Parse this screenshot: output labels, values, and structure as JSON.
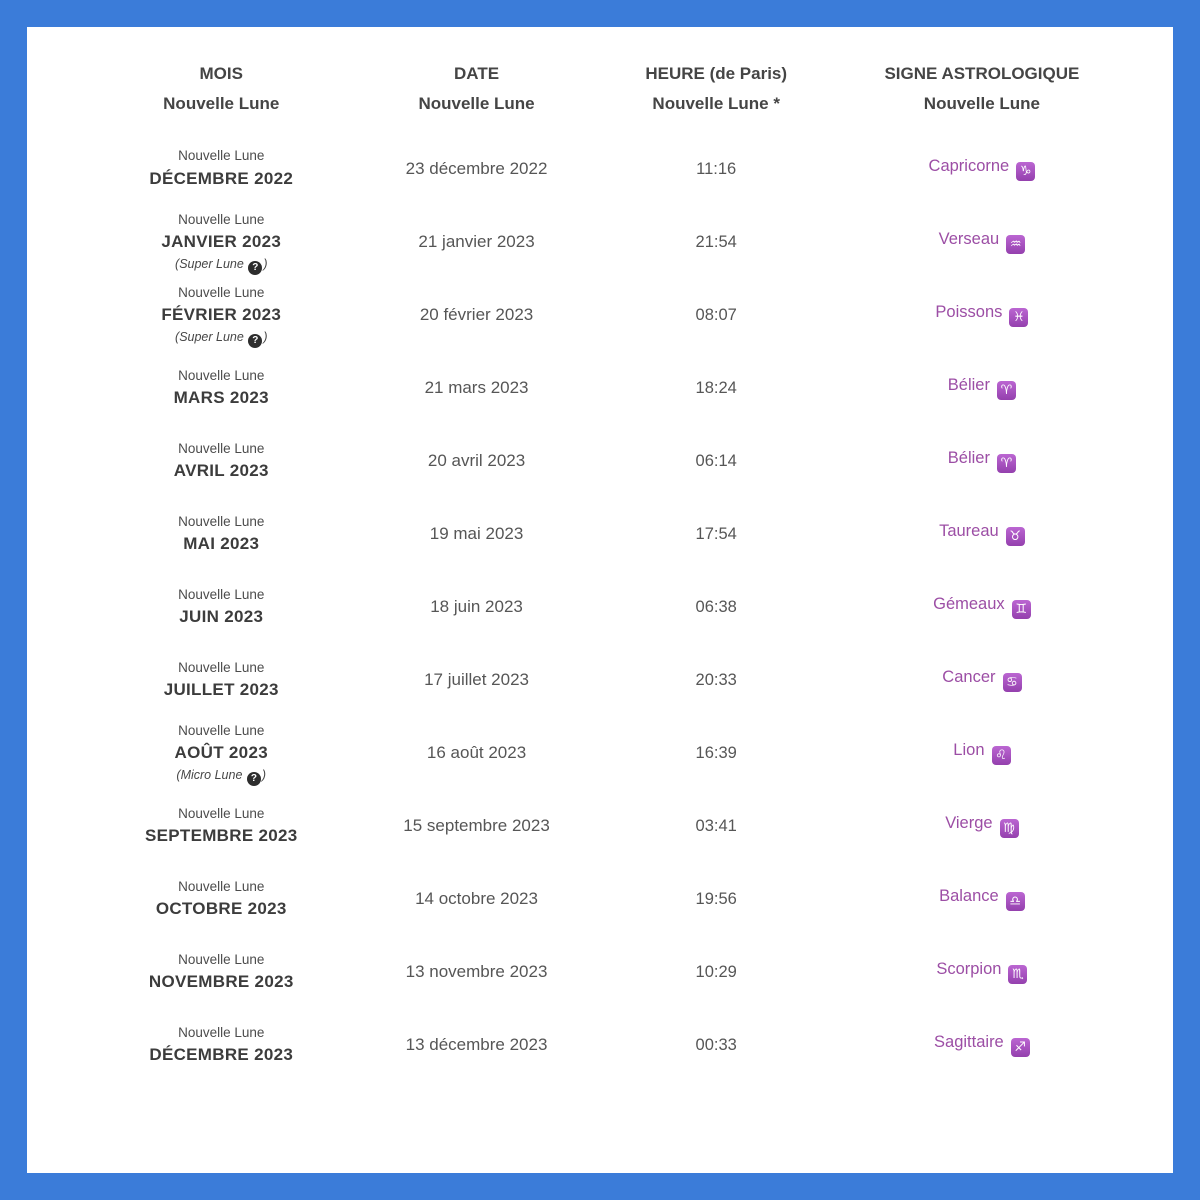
{
  "page": {
    "border_color": "#3b7cd9",
    "accent_purple": "#9c4ea5"
  },
  "table": {
    "note_open": "(",
    "note_close": ")",
    "help_icon_glyph": "?",
    "headers": [
      {
        "line1": "MOIS",
        "line2": "Nouvelle Lune"
      },
      {
        "line1": "DATE",
        "line2": "Nouvelle Lune"
      },
      {
        "line1": "HEURE (de Paris)",
        "line2": "Nouvelle Lune *"
      },
      {
        "line1": "SIGNE ASTROLOGIQUE",
        "line2": "Nouvelle Lune"
      }
    ],
    "rows": [
      {
        "label": "Nouvelle Lune",
        "month": "DÉCEMBRE 2022",
        "note": "",
        "date": "23 décembre 2022",
        "time": "11:16",
        "sign": "Capricorne",
        "sign_symbol": "♑"
      },
      {
        "label": "Nouvelle Lune",
        "month": "JANVIER 2023",
        "note": "Super Lune",
        "date": "21 janvier 2023",
        "time": "21:54",
        "sign": "Verseau",
        "sign_symbol": "♒"
      },
      {
        "label": "Nouvelle Lune",
        "month": "FÉVRIER 2023",
        "note": "Super Lune",
        "date": "20 février 2023",
        "time": "08:07",
        "sign": "Poissons",
        "sign_symbol": "♓"
      },
      {
        "label": "Nouvelle Lune",
        "month": "MARS 2023",
        "note": "",
        "date": "21 mars 2023",
        "time": "18:24",
        "sign": "Bélier",
        "sign_symbol": "♈"
      },
      {
        "label": "Nouvelle Lune",
        "month": "AVRIL 2023",
        "note": "",
        "date": "20 avril 2023",
        "time": "06:14",
        "sign": "Bélier",
        "sign_symbol": "♈"
      },
      {
        "label": "Nouvelle Lune",
        "month": "MAI 2023",
        "note": "",
        "date": "19 mai 2023",
        "time": "17:54",
        "sign": "Taureau",
        "sign_symbol": "♉"
      },
      {
        "label": "Nouvelle Lune",
        "month": "JUIN 2023",
        "note": "",
        "date": "18 juin 2023",
        "time": "06:38",
        "sign": "Gémeaux",
        "sign_symbol": "♊"
      },
      {
        "label": "Nouvelle Lune",
        "month": "JUILLET 2023",
        "note": "",
        "date": "17 juillet 2023",
        "time": "20:33",
        "sign": "Cancer",
        "sign_symbol": "♋"
      },
      {
        "label": "Nouvelle Lune",
        "month": "AOÛT 2023",
        "note": "Micro Lune",
        "date": "16 août 2023",
        "time": "16:39",
        "sign": "Lion",
        "sign_symbol": "♌"
      },
      {
        "label": "Nouvelle Lune",
        "month": "SEPTEMBRE 2023",
        "note": "",
        "date": "15 septembre 2023",
        "time": "03:41",
        "sign": "Vierge",
        "sign_symbol": "♍"
      },
      {
        "label": "Nouvelle Lune",
        "month": "OCTOBRE 2023",
        "note": "",
        "date": "14 octobre 2023",
        "time": "19:56",
        "sign": "Balance",
        "sign_symbol": "♎"
      },
      {
        "label": "Nouvelle Lune",
        "month": "NOVEMBRE 2023",
        "note": "",
        "date": "13 novembre 2023",
        "time": "10:29",
        "sign": "Scorpion",
        "sign_symbol": "♏"
      },
      {
        "label": "Nouvelle Lune",
        "month": "DÉCEMBRE 2023",
        "note": "",
        "date": "13 décembre 2023",
        "time": "00:33",
        "sign": "Sagittaire",
        "sign_symbol": "♐"
      }
    ]
  }
}
